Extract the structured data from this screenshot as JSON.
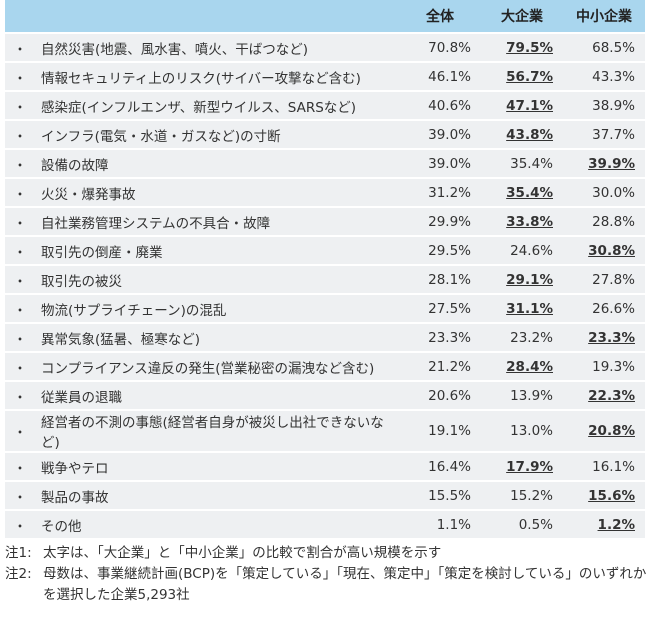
{
  "header": {
    "all": "全体",
    "large": "大企業",
    "sme": "中小企業"
  },
  "bullet": "・",
  "rows": [
    {
      "label": "自然災害(地震、風水害、噴火、干ばつなど)",
      "all": "70.8%",
      "large": "79.5%",
      "sme": "68.5%",
      "higher": "large"
    },
    {
      "label": "情報セキュリティ上のリスク(サイバー攻撃など含む)",
      "all": "46.1%",
      "large": "56.7%",
      "sme": "43.3%",
      "higher": "large"
    },
    {
      "label": "感染症(インフルエンザ、新型ウイルス、SARSなど)",
      "all": "40.6%",
      "large": "47.1%",
      "sme": "38.9%",
      "higher": "large"
    },
    {
      "label": "インフラ(電気・水道・ガスなど)の寸断",
      "all": "39.0%",
      "large": "43.8%",
      "sme": "37.7%",
      "higher": "large"
    },
    {
      "label": "設備の故障",
      "all": "39.0%",
      "large": "35.4%",
      "sme": "39.9%",
      "higher": "sme"
    },
    {
      "label": "火災・爆発事故",
      "all": "31.2%",
      "large": "35.4%",
      "sme": "30.0%",
      "higher": "large"
    },
    {
      "label": "自社業務管理システムの不具合・故障",
      "all": "29.9%",
      "large": "33.8%",
      "sme": "28.8%",
      "higher": "large"
    },
    {
      "label": "取引先の倒産・廃業",
      "all": "29.5%",
      "large": "24.6%",
      "sme": "30.8%",
      "higher": "sme"
    },
    {
      "label": "取引先の被災",
      "all": "28.1%",
      "large": "29.1%",
      "sme": "27.8%",
      "higher": "large"
    },
    {
      "label": "物流(サプライチェーン)の混乱",
      "all": "27.5%",
      "large": "31.1%",
      "sme": "26.6%",
      "higher": "large"
    },
    {
      "label": "異常気象(猛暑、極寒など)",
      "all": "23.3%",
      "large": "23.2%",
      "sme": "23.3%",
      "higher": "sme"
    },
    {
      "label": "コンプライアンス違反の発生(営業秘密の漏洩など含む)",
      "all": "21.2%",
      "large": "28.4%",
      "sme": "19.3%",
      "higher": "large"
    },
    {
      "label": "従業員の退職",
      "all": "20.6%",
      "large": "13.9%",
      "sme": "22.3%",
      "higher": "sme"
    },
    {
      "label": "経営者の不測の事態(経営者自身が被災し出社できないなど)",
      "all": "19.1%",
      "large": "13.0%",
      "sme": "20.8%",
      "higher": "sme"
    },
    {
      "label": "戦争やテロ",
      "all": "16.4%",
      "large": "17.9%",
      "sme": "16.1%",
      "higher": "large"
    },
    {
      "label": "製品の事故",
      "all": "15.5%",
      "large": "15.2%",
      "sme": "15.6%",
      "higher": "sme"
    },
    {
      "label": "その他",
      "all": "1.1%",
      "large": "0.5%",
      "sme": "1.2%",
      "higher": "sme"
    }
  ],
  "notes": [
    {
      "key": "注1:",
      "text": "太字は、「大企業」と「中小企業」の比較で割合が高い規模を示す"
    },
    {
      "key": "注2:",
      "text": "母数は、事業継続計画(BCP)を「策定している」「現在、策定中」「策定を検討している」のいずれかを選択した企業5,293社"
    }
  ]
}
